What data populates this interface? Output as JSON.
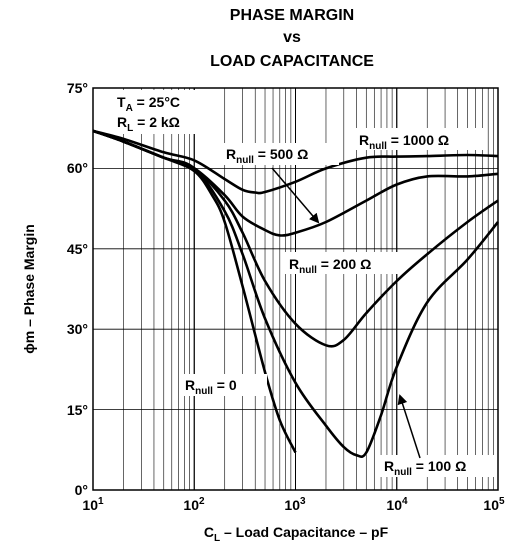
{
  "chart_data": {
    "type": "line",
    "title_lines": [
      "PHASE MARGIN",
      "vs",
      "LOAD CAPACITANCE"
    ],
    "xlabel": {
      "prefix": "C",
      "sub": "L",
      "suffix": " – Load Capacitance – pF"
    },
    "ylabel": {
      "symbol": "ϕ",
      "suffix": "m – Phase Margin"
    },
    "xscale": "log",
    "xlim": [
      10,
      100000
    ],
    "ylim": [
      0,
      75
    ],
    "grid": true,
    "x_ticks": [
      {
        "base": "10",
        "exp": "1"
      },
      {
        "base": "10",
        "exp": "2"
      },
      {
        "base": "10",
        "exp": "3"
      },
      {
        "base": "10",
        "exp": "4"
      },
      {
        "base": "10",
        "exp": "5"
      }
    ],
    "y_ticks": [
      "0°",
      "15°",
      "30°",
      "45°",
      "60°",
      "75°"
    ],
    "conditions": [
      {
        "prefix": "T",
        "sub": "A",
        "suffix": " = 25°C"
      },
      {
        "prefix": "R",
        "sub": "L",
        "suffix": " = 2 kΩ"
      }
    ],
    "series": [
      {
        "name": "R_null = 0",
        "x": [
          10,
          20,
          50,
          100,
          150,
          200,
          300,
          500,
          700,
          1000
        ],
        "y": [
          67,
          65,
          62,
          59.5,
          55,
          50,
          38,
          22,
          13,
          7
        ]
      },
      {
        "name": "R_null = 100 Ω",
        "x": [
          10,
          20,
          50,
          100,
          200,
          300,
          500,
          1000,
          2000,
          3000,
          4000,
          5000,
          7000,
          10000,
          20000,
          50000,
          100000
        ],
        "y": [
          67,
          65,
          62,
          60,
          52,
          44,
          32,
          20,
          12,
          8,
          6.5,
          7,
          14,
          23,
          35,
          43,
          50
        ]
      },
      {
        "name": "R_null = 200 Ω",
        "x": [
          10,
          20,
          50,
          100,
          200,
          300,
          500,
          1000,
          2000,
          3000,
          5000,
          10000,
          20000,
          50000,
          100000
        ],
        "y": [
          67,
          65,
          62,
          60,
          54,
          48,
          39,
          31,
          27,
          28,
          33,
          39,
          44,
          50,
          54
        ]
      },
      {
        "name": "R_null = 500 Ω",
        "x": [
          10,
          20,
          50,
          100,
          200,
          300,
          500,
          700,
          1000,
          2000,
          5000,
          10000,
          20000,
          50000,
          100000
        ],
        "y": [
          67,
          65,
          62,
          60,
          55,
          51,
          48.5,
          47.5,
          48,
          50,
          54,
          57,
          58.5,
          58.5,
          59
        ]
      },
      {
        "name": "R_null = 1000 Ω",
        "x": [
          10,
          20,
          50,
          100,
          200,
          300,
          400,
          500,
          1000,
          2000,
          5000,
          10000,
          20000,
          50000,
          100000
        ],
        "y": [
          67,
          65.5,
          63,
          61.5,
          58,
          56,
          55.5,
          55.6,
          57.5,
          60,
          62,
          62.2,
          62.3,
          62.5,
          62.3
        ]
      }
    ],
    "annotations": [
      {
        "prefix": "R",
        "sub": "null",
        "suffix": " = 1000 Ω"
      },
      {
        "prefix": "R",
        "sub": "null",
        "suffix": " = 500 Ω"
      },
      {
        "prefix": "R",
        "sub": "null",
        "suffix": " = 200 Ω"
      },
      {
        "prefix": "R",
        "sub": "null",
        "suffix": " = 0"
      },
      {
        "prefix": "R",
        "sub": "null",
        "suffix": " = 100 Ω"
      }
    ]
  }
}
